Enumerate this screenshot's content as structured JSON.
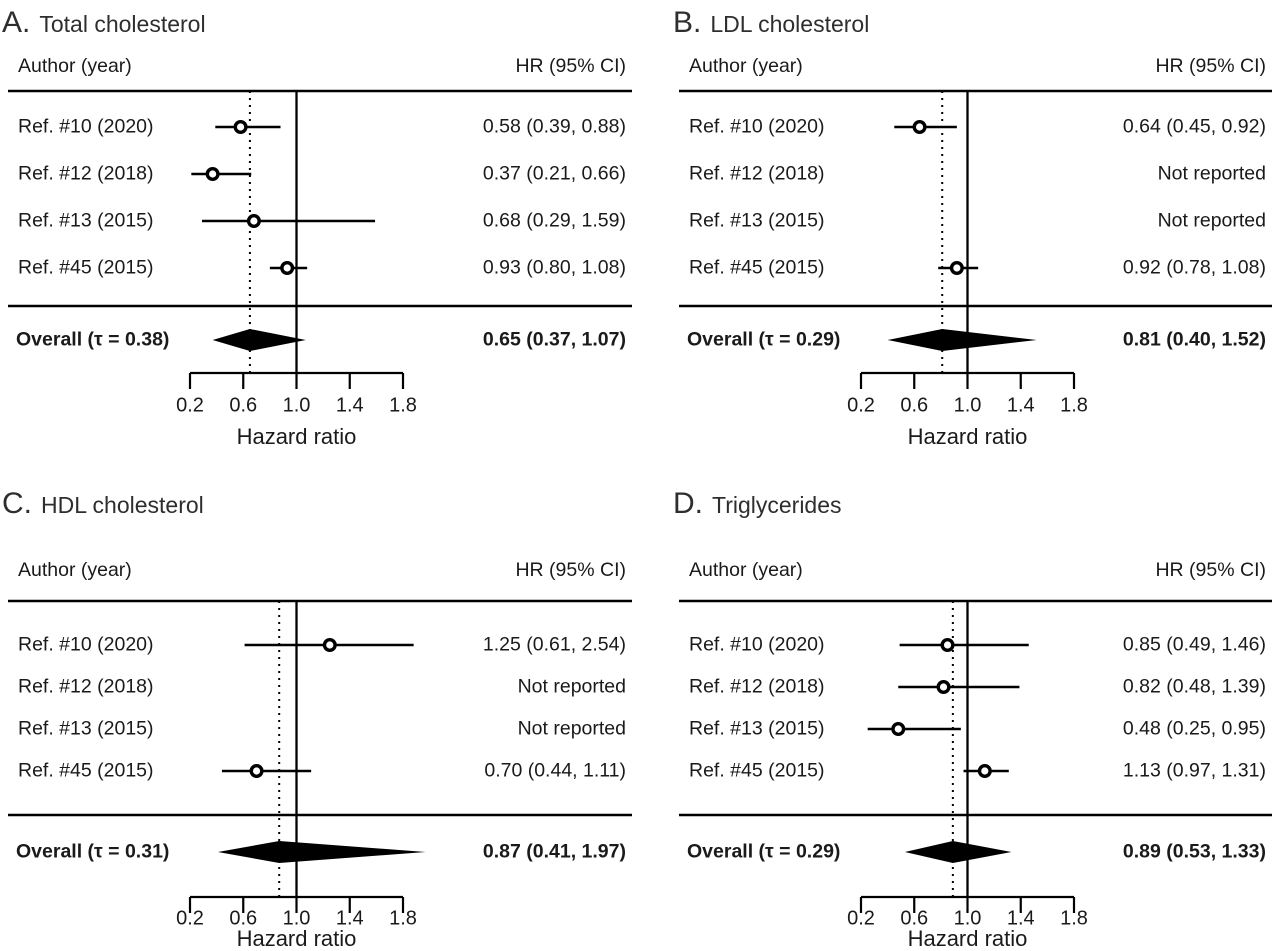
{
  "colors": {
    "ink": "#000000",
    "text": "#1a1a1a",
    "title_text": "#2e2e2e",
    "background": "#ffffff",
    "marker_fill": "#ffffff"
  },
  "chart_data": [
    {
      "type": "forest",
      "panel_letter": "A.",
      "title": "Total cholesterol",
      "columns": {
        "left": "Author (year)",
        "right": "HR (95% CI)"
      },
      "xlabel": "Hazard ratio",
      "x_ticks": [
        0.2,
        0.6,
        1.0,
        1.4,
        1.8
      ],
      "x_tick_labels": [
        "0.2",
        "0.6",
        "1.0",
        "1.4",
        "1.8"
      ],
      "x_range": [
        0.2,
        1.8
      ],
      "reference_line": 1.0,
      "dotted_guide": 0.65,
      "studies": [
        {
          "label": "Ref. #10 (2020)",
          "hr": 0.58,
          "ci_low": 0.39,
          "ci_high": 0.88,
          "hr_text": "0.58 (0.39, 0.88)"
        },
        {
          "label": "Ref. #12 (2018)",
          "hr": 0.37,
          "ci_low": 0.21,
          "ci_high": 0.66,
          "hr_text": "0.37 (0.21, 0.66)"
        },
        {
          "label": "Ref. #13 (2015)",
          "hr": 0.68,
          "ci_low": 0.29,
          "ci_high": 1.59,
          "hr_text": "0.68 (0.29, 1.59)"
        },
        {
          "label": "Ref. #45 (2015)",
          "hr": 0.93,
          "ci_low": 0.8,
          "ci_high": 1.08,
          "hr_text": "0.93 (0.80, 1.08)"
        }
      ],
      "overall": {
        "label": "Overall (τ = 0.38)",
        "tau": 0.38,
        "hr": 0.65,
        "ci_low": 0.37,
        "ci_high": 1.07,
        "hr_text": "0.65 (0.37, 1.07)"
      }
    },
    {
      "type": "forest",
      "panel_letter": "B.",
      "title": "LDL cholesterol",
      "columns": {
        "left": "Author (year)",
        "right": "HR (95% CI)"
      },
      "xlabel": "Hazard ratio",
      "x_ticks": [
        0.2,
        0.6,
        1.0,
        1.4,
        1.8
      ],
      "x_tick_labels": [
        "0.2",
        "0.6",
        "1.0",
        "1.4",
        "1.8"
      ],
      "x_range": [
        0.2,
        1.8
      ],
      "reference_line": 1.0,
      "dotted_guide": 0.81,
      "studies": [
        {
          "label": "Ref. #10 (2020)",
          "hr": 0.64,
          "ci_low": 0.45,
          "ci_high": 0.92,
          "hr_text": "0.64 (0.45, 0.92)"
        },
        {
          "label": "Ref. #12 (2018)",
          "hr": null,
          "ci_low": null,
          "ci_high": null,
          "hr_text": "Not reported"
        },
        {
          "label": "Ref. #13 (2015)",
          "hr": null,
          "ci_low": null,
          "ci_high": null,
          "hr_text": "Not reported"
        },
        {
          "label": "Ref. #45 (2015)",
          "hr": 0.92,
          "ci_low": 0.78,
          "ci_high": 1.08,
          "hr_text": "0.92 (0.78, 1.08)"
        }
      ],
      "overall": {
        "label": "Overall (τ = 0.29)",
        "tau": 0.29,
        "hr": 0.81,
        "ci_low": 0.4,
        "ci_high": 1.52,
        "hr_text": "0.81 (0.40, 1.52)"
      }
    },
    {
      "type": "forest",
      "panel_letter": "C.",
      "title": "HDL cholesterol",
      "columns": {
        "left": "Author (year)",
        "right": "HR (95% CI)"
      },
      "xlabel": "Hazard ratio",
      "x_ticks": [
        0.2,
        0.6,
        1.0,
        1.4,
        1.8
      ],
      "x_tick_labels": [
        "0.2",
        "0.6",
        "1.0",
        "1.4",
        "1.8"
      ],
      "x_range": [
        0.2,
        1.8
      ],
      "reference_line": 1.0,
      "dotted_guide": 0.87,
      "studies": [
        {
          "label": "Ref. #10 (2020)",
          "hr": 1.25,
          "ci_low": 0.61,
          "ci_high": 2.54,
          "hr_text": "1.25 (0.61, 2.54)"
        },
        {
          "label": "Ref. #12 (2018)",
          "hr": null,
          "ci_low": null,
          "ci_high": null,
          "hr_text": "Not reported"
        },
        {
          "label": "Ref. #13 (2015)",
          "hr": null,
          "ci_low": null,
          "ci_high": null,
          "hr_text": "Not reported"
        },
        {
          "label": "Ref. #45 (2015)",
          "hr": 0.7,
          "ci_low": 0.44,
          "ci_high": 1.11,
          "hr_text": "0.70 (0.44, 1.11)"
        }
      ],
      "overall": {
        "label": "Overall (τ = 0.31)",
        "tau": 0.31,
        "hr": 0.87,
        "ci_low": 0.41,
        "ci_high": 1.97,
        "hr_text": "0.87 (0.41, 1.97)"
      }
    },
    {
      "type": "forest",
      "panel_letter": "D.",
      "title": "Triglycerides",
      "columns": {
        "left": "Author (year)",
        "right": "HR (95% CI)"
      },
      "xlabel": "Hazard ratio",
      "x_ticks": [
        0.2,
        0.6,
        1.0,
        1.4,
        1.8
      ],
      "x_tick_labels": [
        "0.2",
        "0.6",
        "1.0",
        "1.4",
        "1.8"
      ],
      "x_range": [
        0.2,
        1.8
      ],
      "reference_line": 1.0,
      "dotted_guide": 0.89,
      "studies": [
        {
          "label": "Ref. #10 (2020)",
          "hr": 0.85,
          "ci_low": 0.49,
          "ci_high": 1.46,
          "hr_text": "0.85 (0.49, 1.46)"
        },
        {
          "label": "Ref. #12 (2018)",
          "hr": 0.82,
          "ci_low": 0.48,
          "ci_high": 1.39,
          "hr_text": "0.82 (0.48, 1.39)"
        },
        {
          "label": "Ref. #13 (2015)",
          "hr": 0.48,
          "ci_low": 0.25,
          "ci_high": 0.95,
          "hr_text": "0.48 (0.25, 0.95)"
        },
        {
          "label": "Ref. #45 (2015)",
          "hr": 1.13,
          "ci_low": 0.97,
          "ci_high": 1.31,
          "hr_text": "1.13 (0.97, 1.31)"
        }
      ],
      "overall": {
        "label": "Overall (τ = 0.29)",
        "tau": 0.29,
        "hr": 0.89,
        "ci_low": 0.53,
        "ci_high": 1.33,
        "hr_text": "0.89 (0.53, 1.33)"
      }
    }
  ]
}
